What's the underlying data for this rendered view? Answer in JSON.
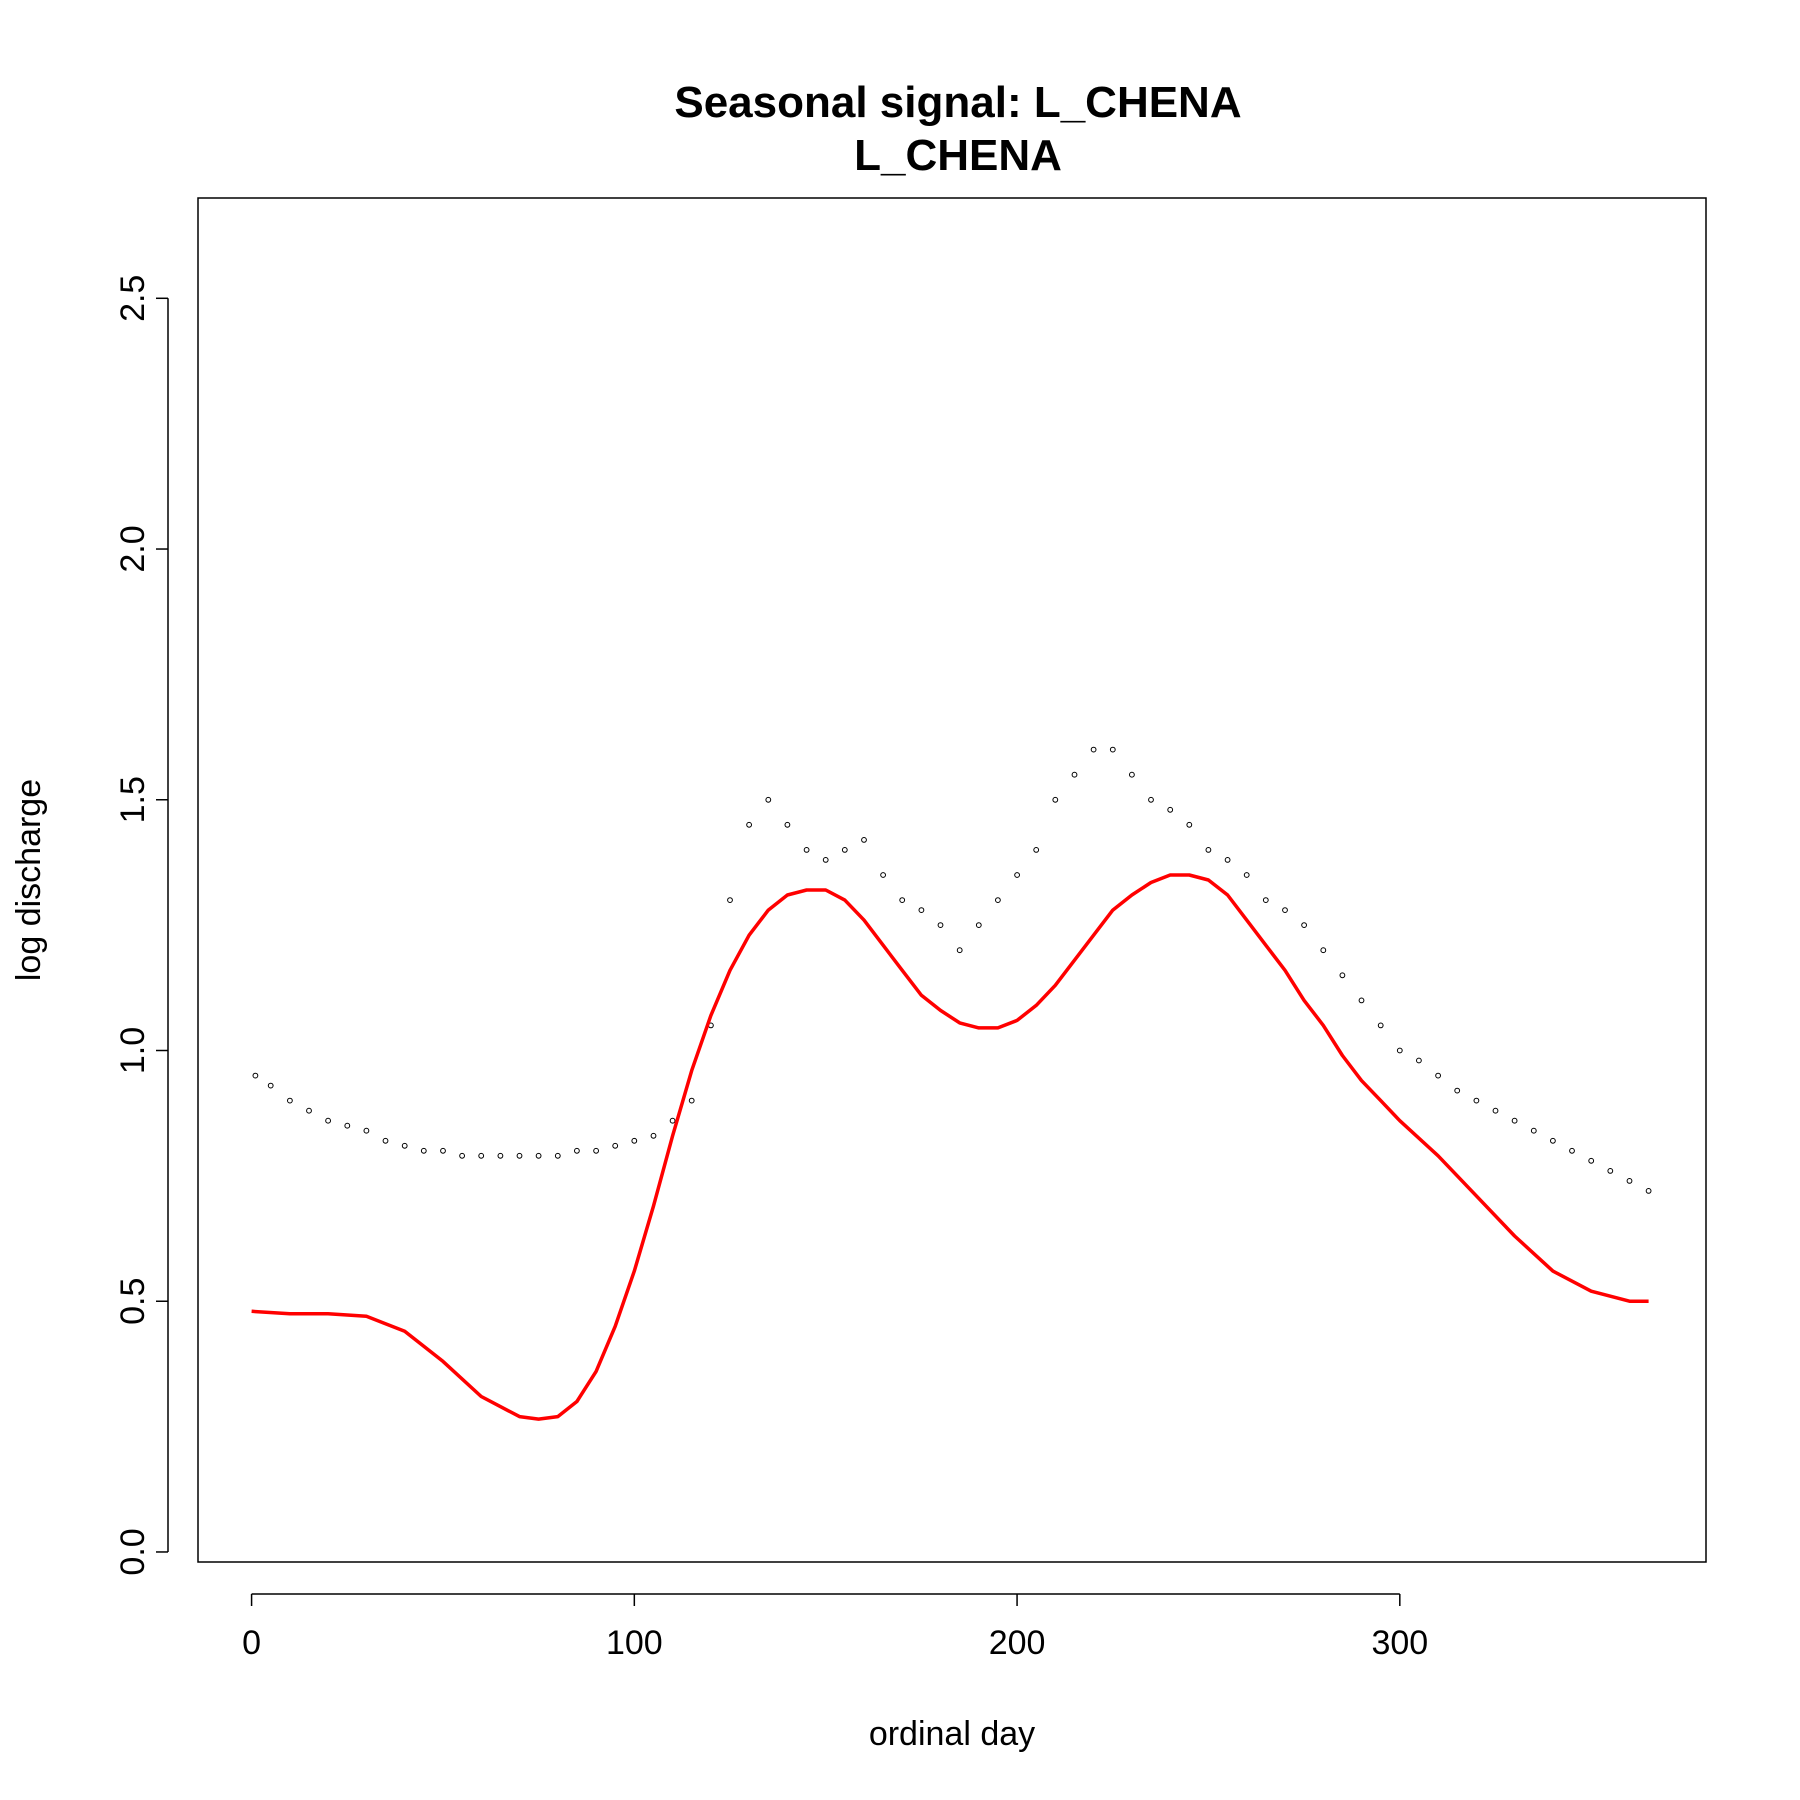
{
  "chart_data": {
    "type": "scatter",
    "title": "Seasonal signal: L_CHENA",
    "subtitle": "L_CHENA",
    "xlabel": "ordinal day",
    "ylabel": "log discharge",
    "xlim": [
      -14,
      380
    ],
    "ylim": [
      -0.02,
      2.7
    ],
    "x_ticks": [
      0,
      100,
      200,
      300
    ],
    "x_tick_labels": [
      "0",
      "100",
      "200",
      "300"
    ],
    "y_ticks": [
      0.0,
      0.5,
      1.0,
      1.5,
      2.0,
      2.5
    ],
    "y_tick_labels": [
      "0.0",
      "0.5",
      "1.0",
      "1.5",
      "2.0",
      "2.5"
    ],
    "grid": false,
    "legend": "none",
    "colors": {
      "points": "#000000",
      "fit_line": "#ff0000"
    },
    "series": [
      {
        "kind": "points",
        "marker": "open-circle",
        "x": [
          1,
          5,
          10,
          15,
          20,
          25,
          30,
          35,
          40,
          45,
          50,
          55,
          60,
          65,
          70,
          75,
          80,
          85,
          90,
          95,
          100,
          105,
          110,
          115,
          120,
          125,
          130,
          135,
          140,
          145,
          150,
          155,
          160,
          165,
          170,
          175,
          180,
          185,
          190,
          195,
          200,
          205,
          210,
          215,
          220,
          225,
          230,
          235,
          240,
          245,
          250,
          255,
          260,
          265,
          270,
          275,
          280,
          285,
          290,
          295,
          300,
          305,
          310,
          315,
          320,
          325,
          330,
          335,
          340,
          345,
          350,
          355,
          360,
          365
        ],
        "y": [
          0.95,
          0.93,
          0.9,
          0.88,
          0.86,
          0.85,
          0.84,
          0.82,
          0.81,
          0.8,
          0.8,
          0.79,
          0.79,
          0.79,
          0.79,
          0.79,
          0.79,
          0.8,
          0.8,
          0.81,
          0.82,
          0.83,
          0.86,
          0.9,
          1.05,
          1.3,
          1.45,
          1.5,
          1.45,
          1.4,
          1.38,
          1.4,
          1.42,
          1.35,
          1.3,
          1.28,
          1.25,
          1.2,
          1.25,
          1.3,
          1.35,
          1.4,
          1.5,
          1.55,
          1.6,
          1.6,
          1.55,
          1.5,
          1.48,
          1.45,
          1.4,
          1.38,
          1.35,
          1.3,
          1.28,
          1.25,
          1.2,
          1.15,
          1.1,
          1.05,
          1.0,
          0.98,
          0.95,
          0.92,
          0.9,
          0.88,
          0.86,
          0.84,
          0.82,
          0.8,
          0.78,
          0.76,
          0.74,
          0.72
        ]
      },
      {
        "kind": "line",
        "x": [
          0,
          10,
          20,
          30,
          40,
          50,
          60,
          70,
          75,
          80,
          85,
          90,
          95,
          100,
          105,
          110,
          115,
          120,
          125,
          130,
          135,
          140,
          145,
          150,
          155,
          160,
          165,
          170,
          175,
          180,
          185,
          190,
          195,
          200,
          205,
          210,
          215,
          220,
          225,
          230,
          235,
          240,
          245,
          250,
          255,
          260,
          265,
          270,
          275,
          280,
          285,
          290,
          295,
          300,
          310,
          320,
          330,
          340,
          350,
          360,
          365
        ],
        "y": [
          0.48,
          0.475,
          0.475,
          0.47,
          0.44,
          0.38,
          0.31,
          0.27,
          0.265,
          0.27,
          0.3,
          0.36,
          0.45,
          0.56,
          0.69,
          0.83,
          0.96,
          1.07,
          1.16,
          1.23,
          1.28,
          1.31,
          1.32,
          1.32,
          1.3,
          1.26,
          1.21,
          1.16,
          1.11,
          1.08,
          1.055,
          1.045,
          1.045,
          1.06,
          1.09,
          1.13,
          1.18,
          1.23,
          1.28,
          1.31,
          1.335,
          1.35,
          1.35,
          1.34,
          1.31,
          1.26,
          1.21,
          1.16,
          1.1,
          1.05,
          0.99,
          0.94,
          0.9,
          0.86,
          0.79,
          0.71,
          0.63,
          0.56,
          0.52,
          0.5,
          0.5
        ]
      }
    ]
  }
}
